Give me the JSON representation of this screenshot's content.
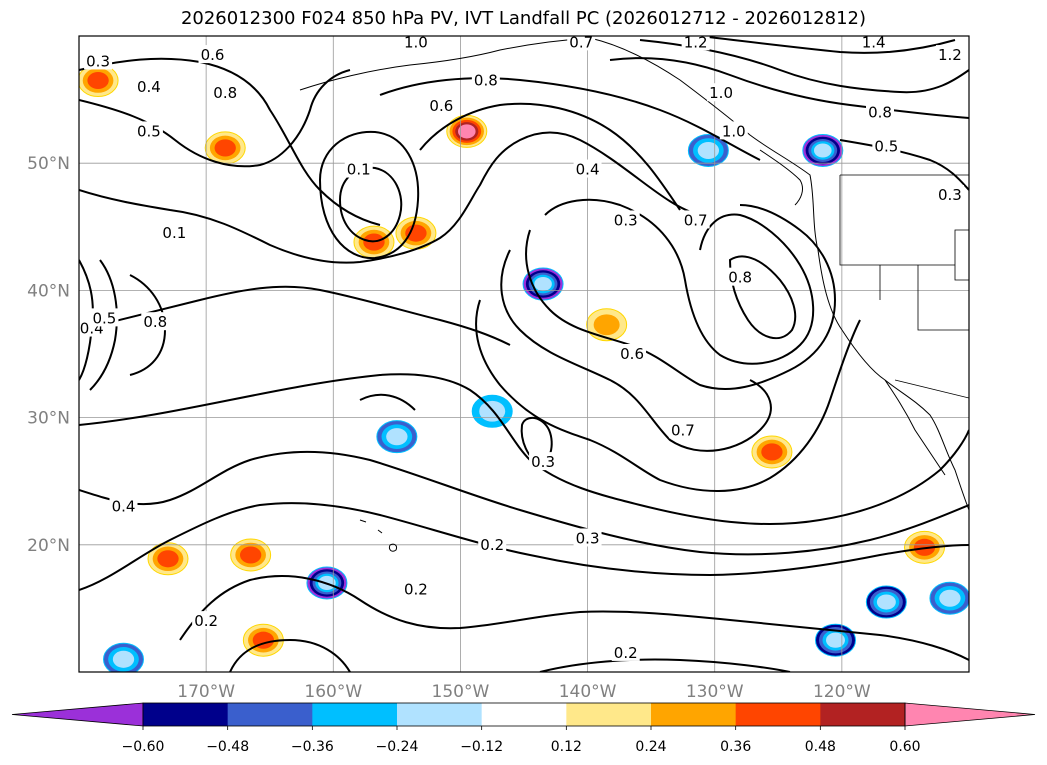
{
  "title": "2026012300 F024 850 hPa PV, IVT Landfall PC (2026012712 - 2026012812)",
  "chart_data": {
    "type": "heatmap",
    "title": "2026012300 F024 850 hPa PV, IVT Landfall PC (2026012712 - 2026012812)",
    "map": {
      "lon_range": [
        -180,
        -110
      ],
      "lat_range": [
        10,
        60
      ],
      "lon_ticks": [
        "170°W",
        "160°W",
        "150°W",
        "140°W",
        "130°W",
        "120°W"
      ],
      "lat_ticks": [
        "20°N",
        "30°N",
        "40°N",
        "50°N"
      ],
      "grid": true,
      "coastlines": true
    },
    "colorbar": {
      "orientation": "horizontal",
      "extend": "both",
      "tick_labels": [
        "−0.60",
        "−0.48",
        "−0.36",
        "−0.24",
        "−0.12",
        "0.12",
        "0.24",
        "0.36",
        "0.48",
        "0.60"
      ],
      "levels": [
        -0.6,
        -0.48,
        -0.36,
        -0.24,
        -0.12,
        0.12,
        0.24,
        0.36,
        0.48,
        0.6
      ],
      "colors": [
        "#9b30d9",
        "#00008b",
        "#3a5fcd",
        "#00bfff",
        "#b0e2ff",
        "#ffffff",
        "#ffe88a",
        "#ffa500",
        "#ff4500",
        "#b22222",
        "#ff85b0"
      ]
    },
    "contours": {
      "field": "850 hPa PV",
      "labels": [
        {
          "text": "0.3",
          "lon": -178.5,
          "lat": 58
        },
        {
          "text": "0.4",
          "lon": -174.5,
          "lat": 56
        },
        {
          "text": "0.6",
          "lon": -169.5,
          "lat": 58.5
        },
        {
          "text": "0.8",
          "lon": -168.5,
          "lat": 55.5
        },
        {
          "text": "0.5",
          "lon": -174.5,
          "lat": 52.5
        },
        {
          "text": "1.0",
          "lon": -153.5,
          "lat": 59.5
        },
        {
          "text": "0.7",
          "lon": -140.5,
          "lat": 59.5
        },
        {
          "text": "1.2",
          "lon": -131.5,
          "lat": 59.5
        },
        {
          "text": "1.4",
          "lon": -117.5,
          "lat": 59.5
        },
        {
          "text": "1.2",
          "lon": -111.5,
          "lat": 58.5
        },
        {
          "text": "0.8",
          "lon": -148,
          "lat": 56.5
        },
        {
          "text": "0.6",
          "lon": -151.5,
          "lat": 54.5
        },
        {
          "text": "1.0",
          "lon": -129.5,
          "lat": 55.5
        },
        {
          "text": "1.0",
          "lon": -128.5,
          "lat": 52.5
        },
        {
          "text": "0.8",
          "lon": -117,
          "lat": 54
        },
        {
          "text": "0.5",
          "lon": -116.5,
          "lat": 51.3
        },
        {
          "text": "0.3",
          "lon": -111.5,
          "lat": 47.5
        },
        {
          "text": "0.1",
          "lon": -158,
          "lat": 49.5
        },
        {
          "text": "0.4",
          "lon": -140,
          "lat": 49.5
        },
        {
          "text": "0.3",
          "lon": -137,
          "lat": 45.5
        },
        {
          "text": "0.7",
          "lon": -131.5,
          "lat": 45.5
        },
        {
          "text": "0.8",
          "lon": -128,
          "lat": 41
        },
        {
          "text": "0.1",
          "lon": -172.5,
          "lat": 44.5
        },
        {
          "text": "0.8",
          "lon": -174,
          "lat": 37.5
        },
        {
          "text": "0.4",
          "lon": -179,
          "lat": 37
        },
        {
          "text": "0.5",
          "lon": -178,
          "lat": 37.8
        },
        {
          "text": "0.6",
          "lon": -136.5,
          "lat": 35
        },
        {
          "text": "0.7",
          "lon": -132.5,
          "lat": 29
        },
        {
          "text": "0.3",
          "lon": -143.5,
          "lat": 26.5
        },
        {
          "text": "0.4",
          "lon": -176.5,
          "lat": 23
        },
        {
          "text": "0.2",
          "lon": -147.5,
          "lat": 20
        },
        {
          "text": "0.3",
          "lon": -140,
          "lat": 20.5
        },
        {
          "text": "0.2",
          "lon": -153.5,
          "lat": 16.5
        },
        {
          "text": "0.2",
          "lon": -170,
          "lat": 14
        },
        {
          "text": "0.2",
          "lon": -137,
          "lat": 11.5
        }
      ]
    },
    "shading": {
      "field": "IVT Landfall PC",
      "positive_regions": [
        {
          "lon": -149.5,
          "lat": 52.5,
          "peak": 0.6
        },
        {
          "lon": -153.5,
          "lat": 44.5,
          "peak": 0.36
        },
        {
          "lon": -156.8,
          "lat": 43.8,
          "peak": 0.36
        },
        {
          "lon": -168.5,
          "lat": 51.2,
          "peak": 0.36
        },
        {
          "lon": -178.5,
          "lat": 56.5,
          "peak": 0.36
        },
        {
          "lon": -166.5,
          "lat": 19.2,
          "peak": 0.36
        },
        {
          "lon": -173,
          "lat": 18.9,
          "peak": 0.36
        },
        {
          "lon": -165.5,
          "lat": 12.5,
          "peak": 0.36
        },
        {
          "lon": -138.5,
          "lat": 37.3,
          "peak": 0.24
        },
        {
          "lon": -125.5,
          "lat": 27.3,
          "peak": 0.36
        },
        {
          "lon": -113.5,
          "lat": 19.8,
          "peak": 0.36
        }
      ],
      "negative_regions": [
        {
          "lon": -121.5,
          "lat": 51,
          "peak": -0.6
        },
        {
          "lon": -130.5,
          "lat": 51,
          "peak": -0.36
        },
        {
          "lon": -143.5,
          "lat": 40.5,
          "peak": -0.6
        },
        {
          "lon": -155,
          "lat": 28.5,
          "peak": -0.36
        },
        {
          "lon": -160.5,
          "lat": 17,
          "peak": -0.6
        },
        {
          "lon": -116.5,
          "lat": 15.5,
          "peak": -0.48
        },
        {
          "lon": -111.5,
          "lat": 15.8,
          "peak": -0.36
        },
        {
          "lon": -120.5,
          "lat": 12.5,
          "peak": -0.48
        },
        {
          "lon": -176.5,
          "lat": 11,
          "peak": -0.36
        },
        {
          "lon": -147.5,
          "lat": 30.5,
          "peak": -0.24
        }
      ]
    }
  }
}
